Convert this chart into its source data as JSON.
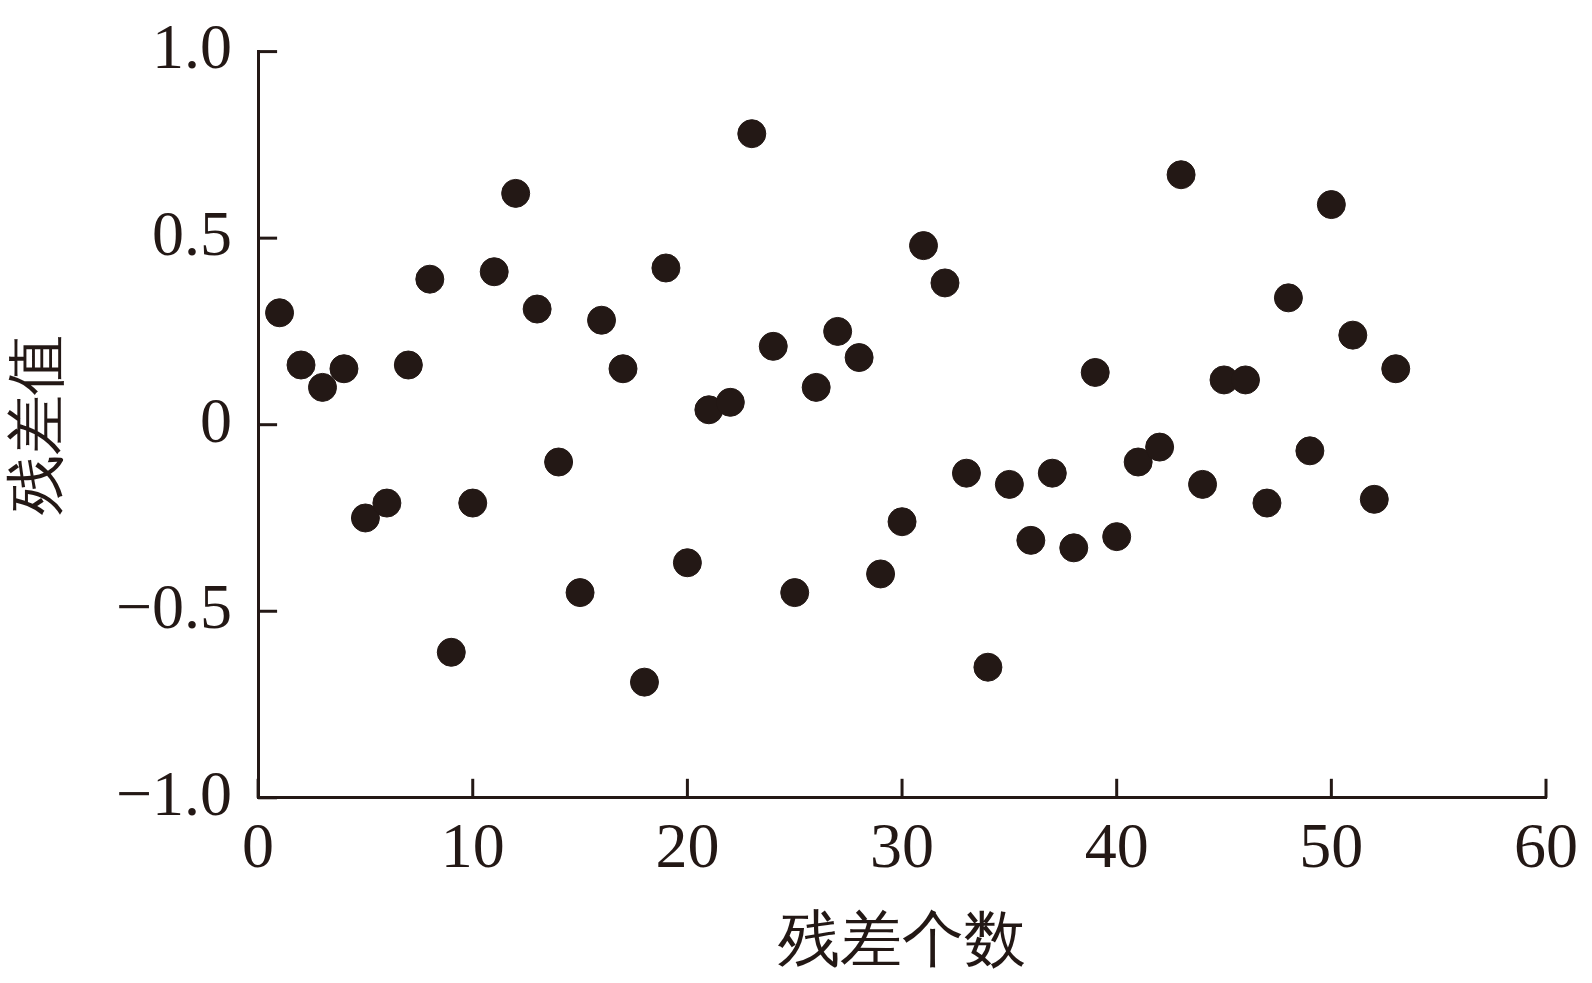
{
  "chart_data": {
    "type": "scatter",
    "xlabel": "残差个数",
    "ylabel": "残差值",
    "x": [
      1,
      2,
      3,
      4,
      5,
      6,
      7,
      8,
      9,
      10,
      11,
      12,
      13,
      14,
      15,
      16,
      17,
      18,
      19,
      20,
      21,
      22,
      23,
      24,
      25,
      26,
      27,
      28,
      29,
      30,
      31,
      32,
      33,
      34,
      35,
      36,
      37,
      38,
      39,
      40,
      41,
      42,
      43,
      44,
      45,
      46,
      47,
      48,
      49,
      50,
      51,
      52,
      53
    ],
    "series": [
      {
        "color": "#231815",
        "values": [
          0.3,
          0.16,
          0.1,
          0.15,
          -0.25,
          -0.21,
          0.16,
          0.39,
          -0.61,
          -0.21,
          0.41,
          0.62,
          0.31,
          -0.1,
          -0.45,
          0.28,
          0.15,
          -0.69,
          0.42,
          -0.37,
          0.04,
          0.06,
          0.78,
          0.21,
          -0.45,
          0.1,
          0.25,
          0.18,
          -0.4,
          -0.26,
          0.48,
          0.38,
          -0.13,
          -0.65,
          -0.16,
          -0.31,
          -0.13,
          -0.33,
          0.14,
          -0.3,
          -0.1,
          -0.06,
          0.67,
          -0.16,
          0.12,
          0.12,
          -0.21,
          0.34,
          -0.07,
          0.59,
          0.24,
          -0.2,
          0.15
        ]
      }
    ],
    "xlim": [
      0,
      60
    ],
    "xticks": [
      0,
      10,
      20,
      30,
      40,
      50,
      60
    ],
    "ylim": [
      -1,
      1
    ],
    "yticks": [
      {
        "value": -1,
        "label": "−1.0"
      },
      {
        "value": -0.5,
        "label": "−0.5"
      },
      0,
      0.5,
      {
        "value": 1,
        "label": "1.0"
      }
    ],
    "grid": false,
    "legend": false,
    "marker": "circle"
  }
}
